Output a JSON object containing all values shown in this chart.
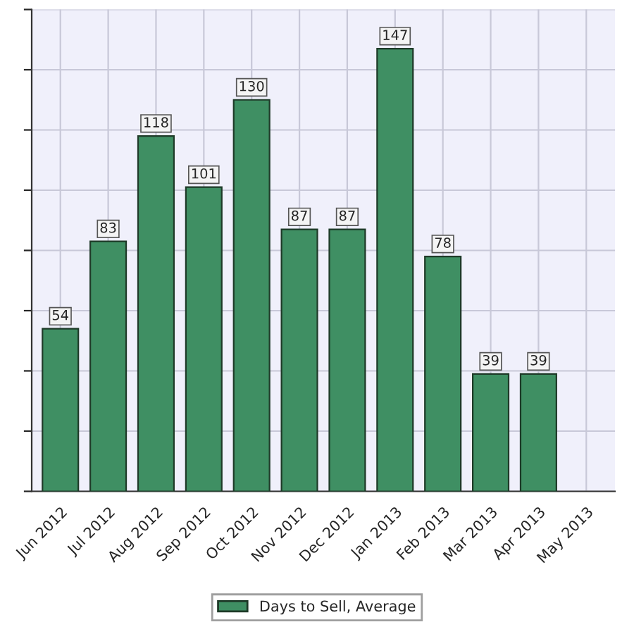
{
  "chart_data": {
    "type": "bar",
    "categories": [
      "Jun 2012",
      "Jul 2012",
      "Aug 2012",
      "Sep 2012",
      "Oct 2012",
      "Nov 2012",
      "Dec 2012",
      "Jan 2013",
      "Feb 2013",
      "Mar 2013",
      "Apr 2013",
      "May 2013"
    ],
    "series": [
      {
        "name": "Days to Sell, Average",
        "color": "#3f8f63",
        "values": [
          54,
          83,
          118,
          101,
          130,
          87,
          87,
          147,
          78,
          39,
          39,
          null
        ]
      }
    ],
    "ylim": [
      0,
      160
    ],
    "yticks": [
      {
        "value": 0,
        "label": null
      },
      {
        "value": 20,
        "label": null
      },
      {
        "value": 40,
        "label": null
      },
      {
        "value": 60,
        "label": null
      },
      {
        "value": 80,
        "label": null
      },
      {
        "value": 100,
        "label": null
      },
      {
        "value": 120,
        "label": null
      },
      {
        "value": 140,
        "label": null
      },
      {
        "value": 160,
        "label": null
      }
    ],
    "data_labels": true,
    "grid": true,
    "legend": "bottom",
    "tick_labels": "x"
  }
}
